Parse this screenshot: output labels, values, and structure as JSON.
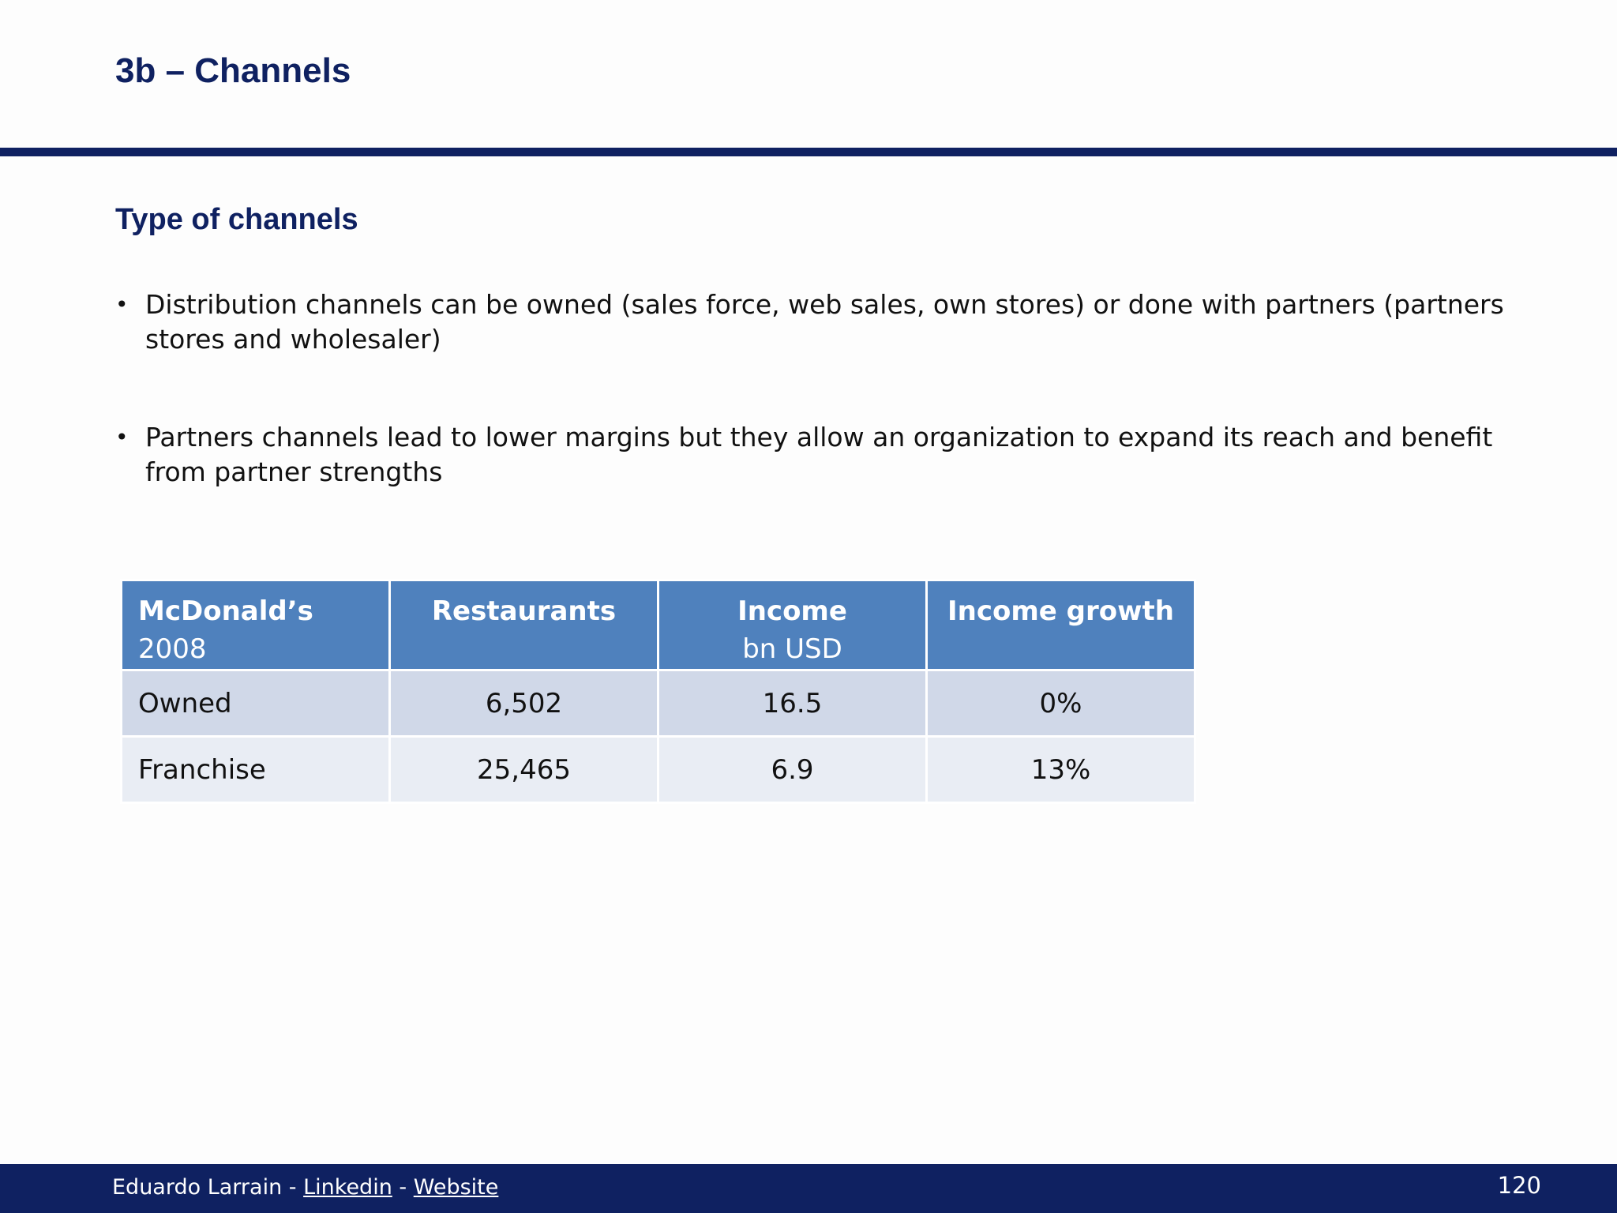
{
  "slide": {
    "title": "3b – Channels",
    "section_heading": "Type of channels",
    "bullets": [
      "Distribution channels can be owned (sales force, web sales, own stores) or done with partners (partners stores and wholesaler)",
      "Partners channels lead to lower margins but they allow an organization to expand its reach and benefit from partner strengths"
    ],
    "bullet_symbol": "•"
  },
  "table": {
    "headers": {
      "col1_bold": "McDonald’s",
      "col1_rest": " 2008",
      "col2": "Restaurants",
      "col3_bold": "Income",
      "col3_sub": "bn USD",
      "col4": "Income growth"
    },
    "rows": [
      {
        "label": "Owned",
        "restaurants": "6,502",
        "income": "16.5",
        "growth": "0%"
      },
      {
        "label": "Franchise",
        "restaurants": "25,465",
        "income": "6.9",
        "growth": "13%"
      }
    ]
  },
  "footer": {
    "author": "Eduardo Larrain - ",
    "linkedin": "Linkedin",
    "separator": " - ",
    "website": "Website",
    "page_number": "120"
  },
  "colors": {
    "title": "#0f2161",
    "header_fill": "#4f81bd",
    "row1_fill": "#d0d8e8",
    "row2_fill": "#e9edf4",
    "footer_bar": "#0f2161"
  }
}
